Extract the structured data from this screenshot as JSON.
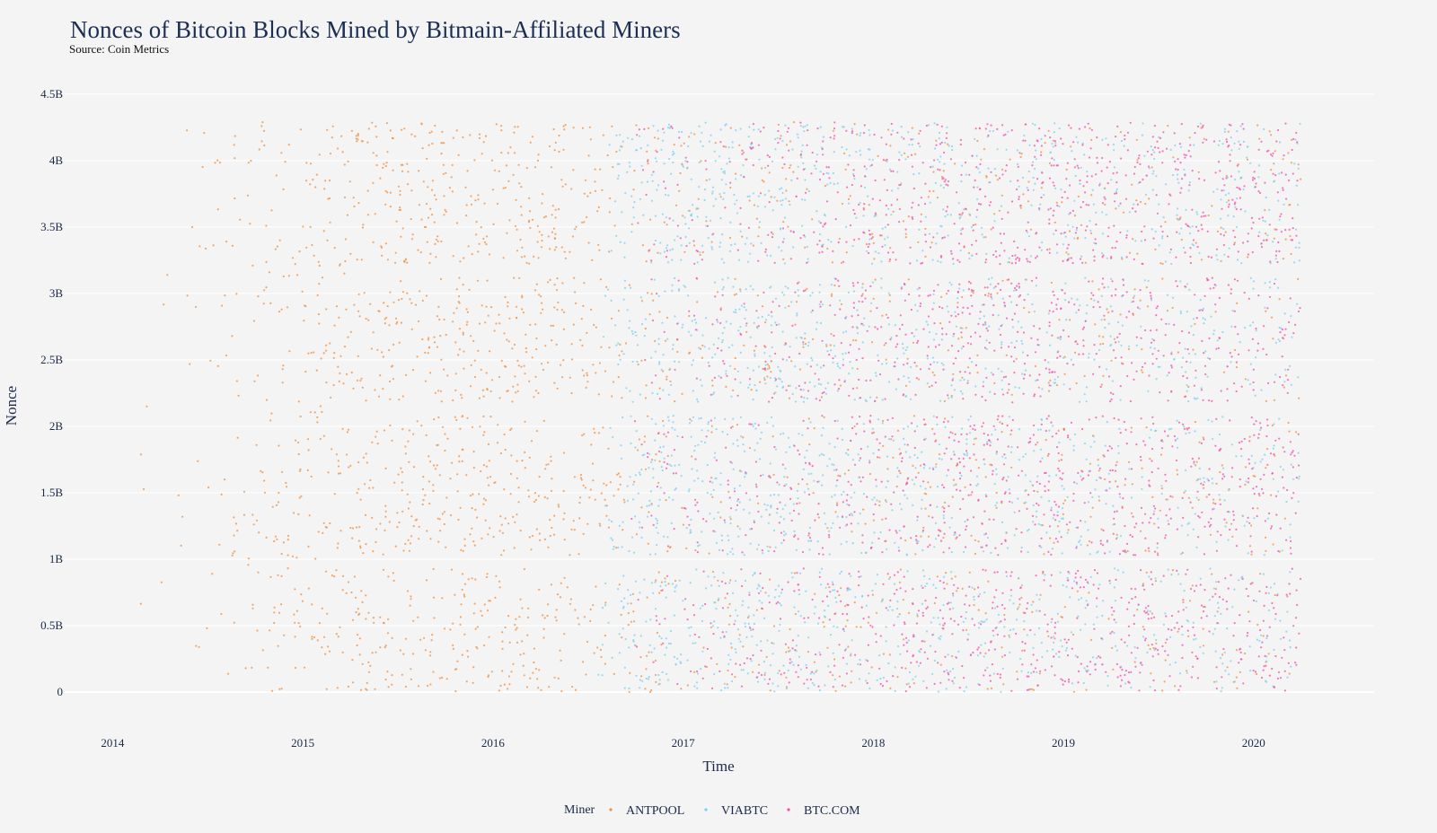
{
  "chart_data": {
    "type": "scatter",
    "title": "Nonces of Bitcoin Blocks Mined by Bitmain-Affiliated Miners",
    "subtitle": "Source: Coin Metrics",
    "xlabel": "Time",
    "ylabel": "Nonce",
    "x_ticks": [
      "2014",
      "2015",
      "2016",
      "2017",
      "2018",
      "2019",
      "2020"
    ],
    "y_ticks": [
      "0",
      "0.5B",
      "1B",
      "1.5B",
      "2B",
      "2.5B",
      "3B",
      "3.5B",
      "4B",
      "4.5B"
    ],
    "y_tick_values": [
      0,
      0.5,
      1,
      1.5,
      2,
      2.5,
      3,
      3.5,
      4,
      4.5
    ],
    "xlim": [
      "2013-10-01",
      "2020-08-20"
    ],
    "ylim": [
      -0.25,
      4.6
    ],
    "y_unit": "billions",
    "grid": true,
    "legend_title": "Miner",
    "legend_position": "bottom",
    "series": [
      {
        "name": "ANTPOOL",
        "color": "#f28e3b",
        "active_range": [
          "2014-02-20",
          "2020-04-01"
        ],
        "density": [
          [
            2014.1,
            0.02
          ],
          [
            2014.5,
            0.15
          ],
          [
            2014.9,
            0.6
          ],
          [
            2015.5,
            1.0
          ],
          [
            2016.0,
            1.0
          ],
          [
            2016.5,
            0.9
          ],
          [
            2016.6,
            0.45
          ],
          [
            2017.5,
            0.4
          ],
          [
            2018.0,
            0.35
          ],
          [
            2020.3,
            0.25
          ]
        ]
      },
      {
        "name": "VIABTC",
        "color": "#7ccff0",
        "active_range": [
          "2016-07-01",
          "2020-04-01"
        ],
        "density": [
          [
            2016.55,
            0.0
          ],
          [
            2016.7,
            0.6
          ],
          [
            2017.5,
            0.6
          ],
          [
            2018.0,
            0.45
          ],
          [
            2020.3,
            0.35
          ]
        ]
      },
      {
        "name": "BTC.COM",
        "color": "#f24fa8",
        "active_range": [
          "2016-09-01",
          "2020-04-01"
        ],
        "density": [
          [
            2016.6,
            0.0
          ],
          [
            2016.9,
            0.25
          ],
          [
            2017.5,
            0.55
          ],
          [
            2018.0,
            1.0
          ],
          [
            2019.0,
            1.0
          ],
          [
            2020.3,
            0.85
          ]
        ]
      }
    ],
    "nonce_gaps_billions": [
      [
        0.93,
        1.03
      ],
      [
        2.08,
        2.18
      ],
      [
        3.12,
        3.22
      ]
    ]
  }
}
